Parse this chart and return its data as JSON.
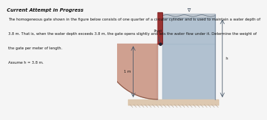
{
  "title_text": "Current Attempt in Progress",
  "line1": "The homogeneous gate shown in the figure below consists of one quarter of a circular cylinder and is used to maintain a water depth of",
  "line2": "3.8 m. That is, when the water depth exceeds 3.8 m, the gate opens slightly and lets the water flow under it. Determine the weight of",
  "line3": "the gate per meter of length.",
  "line4": "Assume h = 3.8 m.",
  "bg_color": "#f0f0f0",
  "water_color": "#aabccc",
  "gate_color": "#cc9988",
  "wall_color": "#993333",
  "ground_color": "#ddc8b0",
  "pivot_color": "#222233",
  "text_color": "#111111",
  "title_color": "#111111",
  "dim_color": "#445566",
  "border_color": "#778899",
  "water_top_color": "#9aafbf",
  "wall_outline": "#661111"
}
